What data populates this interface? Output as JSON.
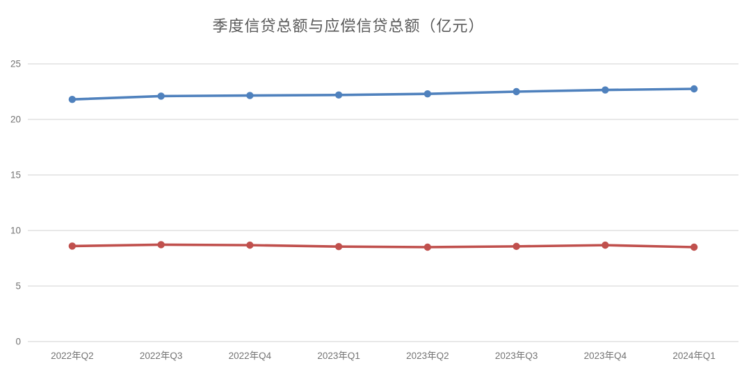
{
  "chart": {
    "title": "季度信贷总额与应偿信贷总额（亿元）"
  },
  "chart_data": {
    "type": "line",
    "title": "季度信贷总额与应偿信贷总额（亿元）",
    "xlabel": "",
    "ylabel": "",
    "categories": [
      "2022年Q2",
      "2022年Q3",
      "2022年Q4",
      "2023年Q1",
      "2023年Q2",
      "2023年Q3",
      "2023年Q4",
      "2024年Q1"
    ],
    "series": [
      {
        "name": "季度信贷总额",
        "color": "#4F81BD",
        "values": [
          21.8,
          22.1,
          22.15,
          22.2,
          22.3,
          22.5,
          22.65,
          22.75
        ]
      },
      {
        "name": "应偿信贷总额",
        "color": "#C0504D",
        "values": [
          8.6,
          8.72,
          8.68,
          8.55,
          8.5,
          8.57,
          8.68,
          8.5
        ]
      }
    ],
    "ylim": [
      0,
      25
    ],
    "yticks": [
      0,
      5,
      10,
      15,
      20,
      25
    ],
    "grid": true,
    "legend": "none",
    "colors": {
      "gridline": "#D9D9D9",
      "tick_label": "#737373",
      "title": "#595959",
      "background": "#FFFFFF"
    }
  }
}
